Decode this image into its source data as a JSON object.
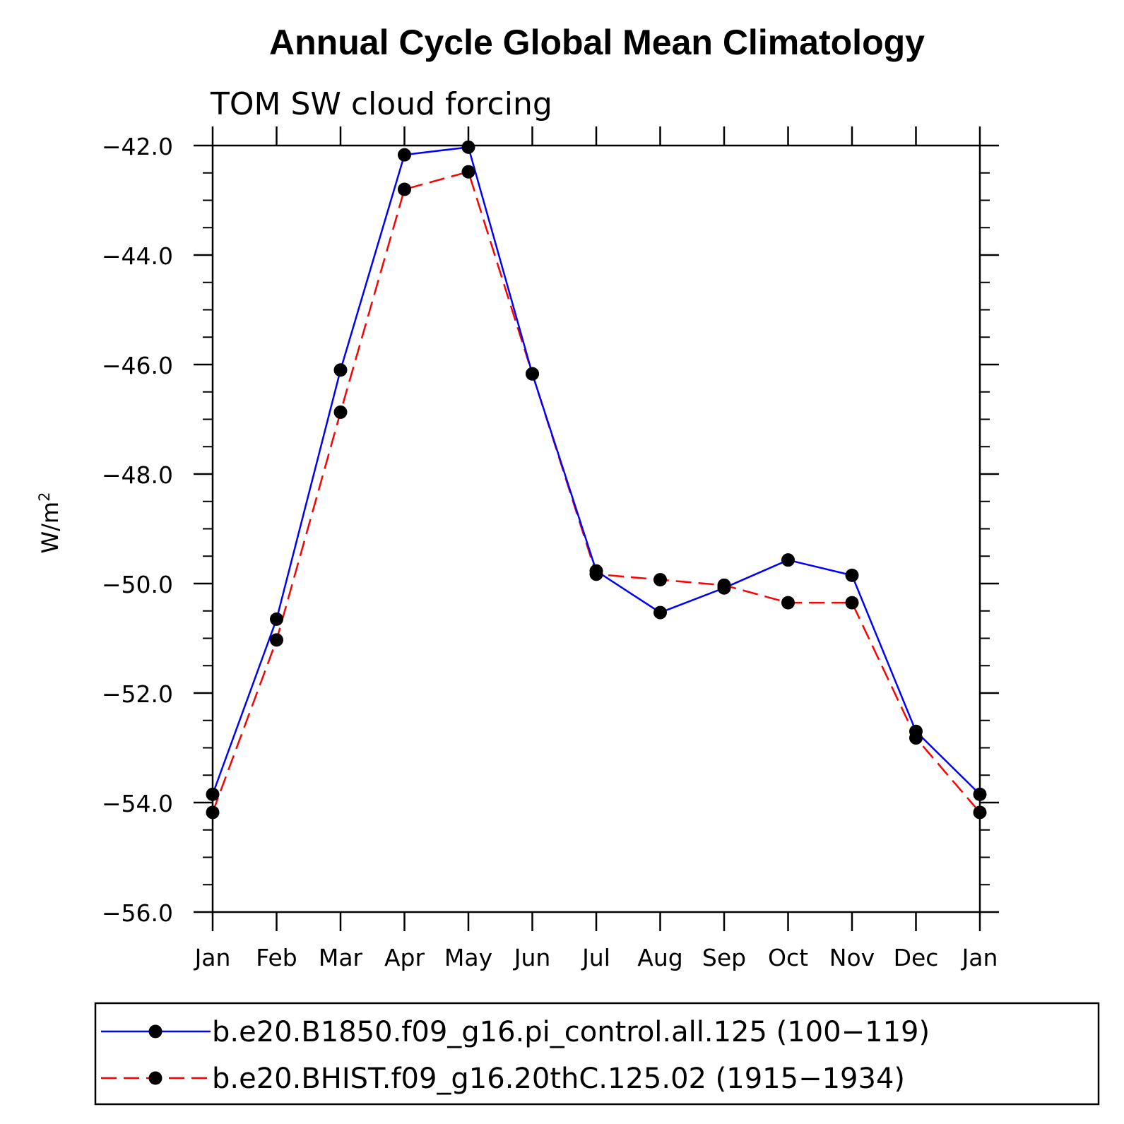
{
  "chart_data": {
    "type": "line",
    "title": "Annual Cycle Global Mean Climatology",
    "subtitle": "TOM SW cloud forcing",
    "xlabel": "",
    "ylabel": "W/m",
    "ylabel_sup": "2",
    "categories": [
      "Jan",
      "Feb",
      "Mar",
      "Apr",
      "May",
      "Jun",
      "Jul",
      "Aug",
      "Sep",
      "Oct",
      "Nov",
      "Dec",
      "Jan"
    ],
    "ylim": [
      -56.0,
      -42.0
    ],
    "yticks": [
      -42.0,
      -44.0,
      -46.0,
      -48.0,
      -50.0,
      -52.0,
      -54.0,
      -56.0
    ],
    "ytick_labels": [
      "−42.0",
      "−44.0",
      "−46.0",
      "−48.0",
      "−50.0",
      "−52.0",
      "−54.0",
      "−56.0"
    ],
    "grid": false,
    "legend_position": "bottom",
    "series": [
      {
        "name": "b.e20.B1850.f09_g16.pi_control.all.125 (100−119)",
        "color": "#0000ff",
        "style": "solid",
        "marker": "circle",
        "values": [
          -53.85,
          -50.65,
          -46.1,
          -42.17,
          -42.03,
          -46.17,
          -49.77,
          -50.53,
          -50.08,
          -49.57,
          -49.85,
          -52.7,
          -53.85
        ]
      },
      {
        "name": "b.e20.BHIST.f09_g16.20thC.125.02 (1915−1934)",
        "color": "#ff0000",
        "style": "dashed",
        "marker": "circle",
        "values": [
          -54.18,
          -51.03,
          -46.87,
          -42.8,
          -42.48,
          -46.17,
          -49.83,
          -49.93,
          -50.03,
          -50.35,
          -50.35,
          -52.82,
          -54.18
        ]
      }
    ]
  }
}
